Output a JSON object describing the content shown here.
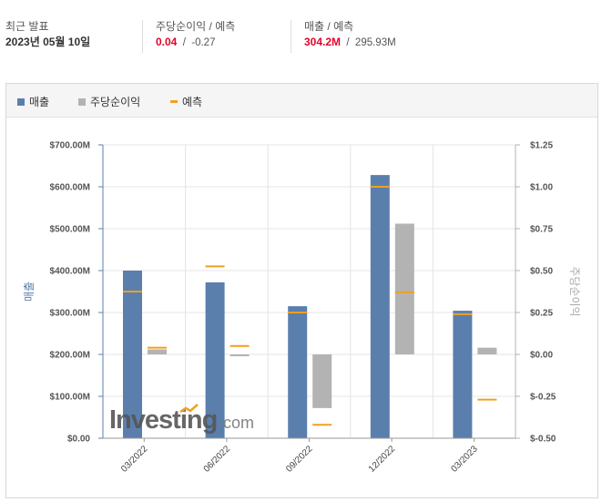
{
  "header": {
    "latest": {
      "label": "최근 발표",
      "value": "2023년 05월 10일"
    },
    "eps": {
      "label": "주당순이익 / 예측",
      "actual": "0.04",
      "slash": "/",
      "forecast": "-0.27"
    },
    "revenue": {
      "label": "매출 / 예측",
      "actual": "304.2M",
      "slash": "/",
      "forecast": "295.93M"
    }
  },
  "legend": [
    {
      "label": "매출",
      "color": "#5b7fad",
      "kind": "box"
    },
    {
      "label": "주당순이익",
      "color": "#b3b3b3",
      "kind": "box"
    },
    {
      "label": "예측",
      "color": "#f0a020",
      "kind": "line"
    }
  ],
  "watermark": {
    "brand": "Investing",
    "suffix": ".com"
  },
  "chart_data": {
    "type": "bar",
    "categories": [
      "03/2022",
      "06/2022",
      "09/2022",
      "12/2022",
      "03/2023"
    ],
    "ylabel_left": "매출",
    "ylabel_right": "주당순이익",
    "y_left": {
      "min": 0,
      "max": 700,
      "unit": "M",
      "ticks": [
        "$0.00",
        "$100.00M",
        "$200.00M",
        "$300.00M",
        "$400.00M",
        "$500.00M",
        "$600.00M",
        "$700.00M"
      ]
    },
    "y_right": {
      "min": -0.5,
      "max": 1.25,
      "ticks": [
        "$-0.50",
        "$-0.25",
        "$0.00",
        "$0.25",
        "$0.50",
        "$0.75",
        "$1.00",
        "$1.25"
      ]
    },
    "series": [
      {
        "name": "매출",
        "axis": "left",
        "values": [
          400,
          372,
          315,
          628,
          304.2
        ],
        "forecast": [
          350,
          410,
          300,
          600,
          295.93
        ]
      },
      {
        "name": "주당순이익",
        "axis": "right",
        "values": [
          0.03,
          0.0,
          -0.32,
          0.78,
          0.04
        ],
        "forecast": [
          0.04,
          0.05,
          -0.42,
          0.37,
          -0.27
        ]
      }
    ],
    "grid": true,
    "legend_position": "top-left"
  }
}
